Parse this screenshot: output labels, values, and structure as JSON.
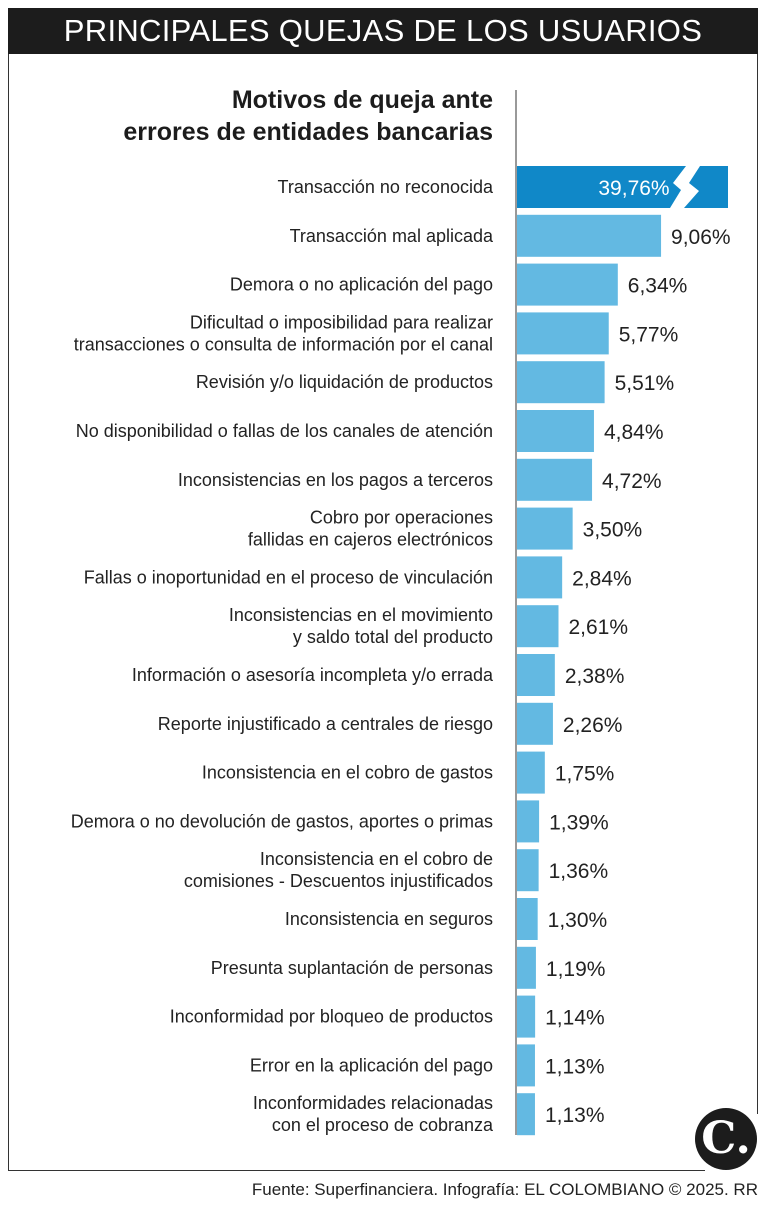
{
  "header": {
    "title": "PRINCIPALES QUEJAS DE LOS USUARIOS"
  },
  "chart_data": {
    "type": "bar",
    "orientation": "horizontal",
    "title_lines": [
      "Motivos de queja ante",
      "errores de entidades bancarias"
    ],
    "categories": [
      [
        "Transacción no reconocida"
      ],
      [
        "Transacción mal aplicada"
      ],
      [
        "Demora o no aplicación del pago"
      ],
      [
        "Dificultad o imposibilidad para realizar",
        "transacciones o consulta de información por el canal"
      ],
      [
        "Revisión y/o liquidación de productos"
      ],
      [
        "No disponibilidad o fallas de los canales de atención"
      ],
      [
        "Inconsistencias en los pagos a terceros"
      ],
      [
        "Cobro por operaciones",
        "fallidas en cajeros electrónicos"
      ],
      [
        "Fallas o inoportunidad en el proceso de vinculación"
      ],
      [
        "Inconsistencias en el movimiento",
        "y saldo total del producto"
      ],
      [
        "Información o asesoría incompleta y/o errada"
      ],
      [
        "Reporte injustificado a centrales de riesgo"
      ],
      [
        "Inconsistencia en el cobro de gastos"
      ],
      [
        "Demora o no devolución de gastos, aportes o primas"
      ],
      [
        "Inconsistencia en el cobro de",
        "comisiones - Descuentos injustificados"
      ],
      [
        "Inconsistencia en seguros"
      ],
      [
        "Presunta suplantación de personas"
      ],
      [
        "Inconformidad por bloqueo de productos"
      ],
      [
        "Error en la aplicación del pago"
      ],
      [
        "Inconformidades relacionadas",
        "con el proceso de cobranza"
      ]
    ],
    "values": [
      39.76,
      9.06,
      6.34,
      5.77,
      5.51,
      4.84,
      4.72,
      3.5,
      2.84,
      2.61,
      2.38,
      2.26,
      1.75,
      1.39,
      1.36,
      1.3,
      1.19,
      1.14,
      1.13,
      1.13
    ],
    "value_labels": [
      "39,76%",
      "9,06%",
      "6,34%",
      "5,77%",
      "5,51%",
      "4,84%",
      "4,72%",
      "3,50%",
      "2,84%",
      "2,61%",
      "2,38%",
      "2,26%",
      "1,75%",
      "1,39%",
      "1,36%",
      "1,30%",
      "1,19%",
      "1,14%",
      "1,13%",
      "1,13%"
    ],
    "unit": "%",
    "first_bar_broken": true,
    "colors": {
      "highlight": "#1088c8",
      "bar": "#63b9e2"
    },
    "grid": false
  },
  "logo": {
    "text": "C."
  },
  "source": "Fuente: Superfinanciera. Infografía: EL COLOMBIANO © 2025. RR"
}
